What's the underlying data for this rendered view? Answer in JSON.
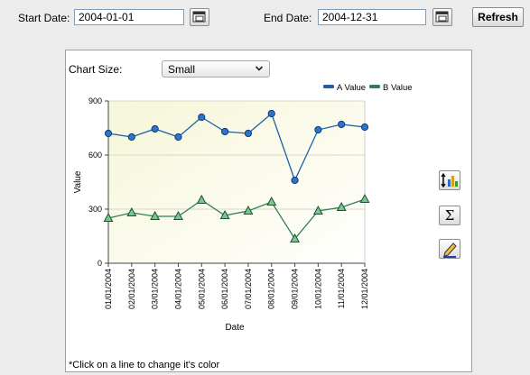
{
  "filters": {
    "start_label": "Start Date:",
    "start_value": "2004-01-01",
    "end_label": "End Date:",
    "end_value": "2004-12-31",
    "refresh_label": "Refresh"
  },
  "chart_size": {
    "label": "Chart Size:",
    "selected": "Small"
  },
  "note": "*Click on a line to change it's color",
  "tools": [
    "chart-type-icon",
    "sum-icon",
    "edit-icon"
  ],
  "chart_data": {
    "type": "line",
    "xlabel": "Date",
    "ylabel": "Value",
    "ylim": [
      0,
      900
    ],
    "yticks": [
      "0",
      "300",
      "600",
      "900"
    ],
    "categories": [
      "01/01/2004",
      "02/01/2004",
      "03/01/2004",
      "04/01/2004",
      "05/01/2004",
      "06/01/2004",
      "07/01/2004",
      "08/01/2004",
      "09/01/2004",
      "10/01/2004",
      "11/01/2004",
      "12/01/2004"
    ],
    "legend_placement": "top-right",
    "grid": true,
    "series": [
      {
        "name": "A Value",
        "color": "#1f5fa8",
        "marker": "circle",
        "values": [
          720,
          700,
          745,
          700,
          810,
          730,
          720,
          830,
          460,
          740,
          770,
          755
        ]
      },
      {
        "name": "B Value",
        "color": "#2e7d5b",
        "marker": "triangle",
        "values": [
          250,
          280,
          260,
          260,
          350,
          265,
          290,
          340,
          135,
          290,
          310,
          355
        ]
      }
    ]
  }
}
